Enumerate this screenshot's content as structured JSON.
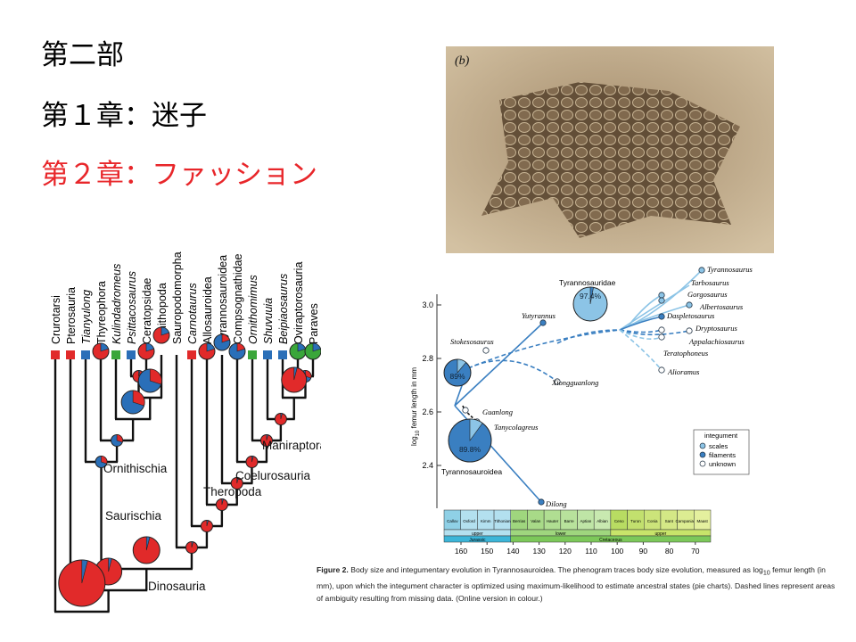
{
  "headings": [
    "第二部",
    "第１章：迷子",
    "第２章：ファッション"
  ],
  "cladogram": {
    "taxa": [
      "Crurotarsi",
      "Pterosauria",
      "Tianyulong",
      "Thyreophora",
      "Kulindadromeus",
      "Psittacosaurus",
      "Ceratopsidae",
      "Ornithopoda",
      "Sauropodomorpha",
      "Carnotaurus",
      "Allosauroidea",
      "Tyrannosauroidea",
      "Compsognathidae",
      "Ornithomimus",
      "Shuvuuia",
      "Beipiaosaurus",
      "Oviraptorosauria",
      "Paraves"
    ],
    "clades": [
      "Ornithischia",
      "Saurischia",
      "Theropoda",
      "Coelurosauria",
      "Maniraptora",
      "Dinosauria"
    ]
  },
  "photo": {
    "label": "(b)"
  },
  "figure": {
    "y_axis": {
      "label_parts": [
        "log",
        "10",
        " femur length in mm"
      ],
      "ticks": [
        "3.0",
        "2.8",
        "2.6",
        "2.4"
      ]
    },
    "x_ticks": [
      160,
      150,
      140,
      130,
      120,
      110,
      100,
      90,
      80,
      70
    ],
    "taxa": [
      "Tyrannosaurus",
      "Tarbosaurus",
      "Gorgosaurus",
      "Albertosaurus",
      "Daspletosaurus",
      "Dryptosaurus",
      "Appalachiosaurus",
      "Teratophoneus",
      "Alioramus",
      "Tyrannosauridae",
      "Yutyrannus",
      "Stokesosaurus",
      "Xiongguanlong",
      "Guanlong",
      "Tanycolagreus",
      "Tyrannosauroidea",
      "Dilong"
    ],
    "pie_labels": [
      "97.4%",
      "89%",
      "89.8%"
    ],
    "legend": {
      "title": "integument",
      "items": [
        "scales",
        "filaments",
        "unknown"
      ]
    },
    "timescale": {
      "stages": [
        "Callov",
        "Oxford",
        "Kimm",
        "Tithonian",
        "Berrias",
        "Valan",
        "Hauter",
        "Barre",
        "Aptian",
        "Albian",
        "Ceno",
        "Turon",
        "Conia",
        "Sant",
        "Campanian",
        "Maast"
      ],
      "epochs": [
        "upper",
        "lower",
        "upper"
      ],
      "periods": [
        "Jurassic",
        "Cretaceous"
      ]
    },
    "caption": {
      "lead": "Figure 2.",
      "parts": [
        " Body size and integumentary evolution in Tyrannosauroidea. The phenogram traces body size evolution, measured as log",
        "10",
        " femur length (in mm), upon which the integument character is optimized using maximum-likelihood to estimate ancestral states (pie charts). Dashed lines represent areas of ambiguity resulting from missing data. (Online version in colour.)"
      ]
    }
  }
}
